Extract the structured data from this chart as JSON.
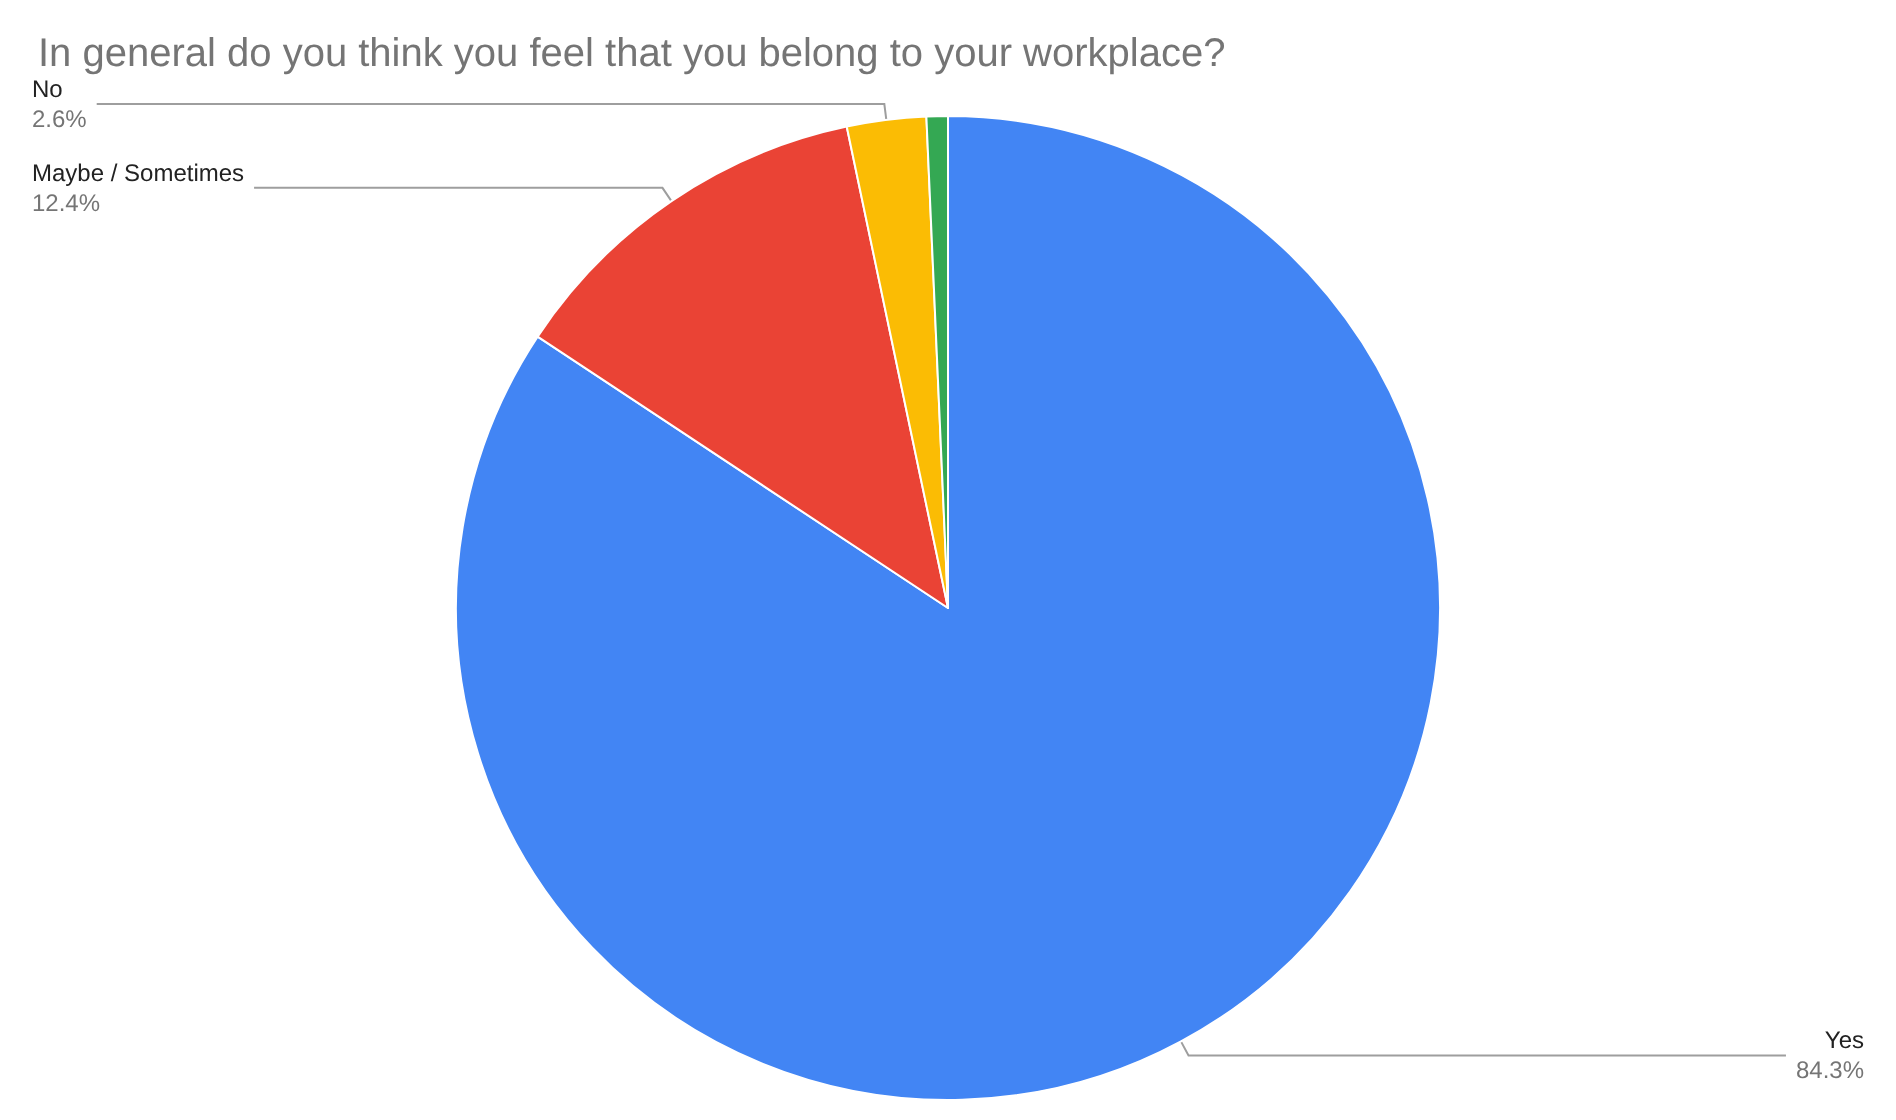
{
  "chart_data": {
    "type": "pie",
    "title": "In general do you think you feel that you belong to your workplace?",
    "categories": [
      "Yes",
      "Maybe / Sometimes",
      "No",
      null
    ],
    "values": [
      84.3,
      12.4,
      2.6,
      0.7
    ],
    "value_labels": [
      "84.3%",
      "12.4%",
      "2.6%",
      null
    ],
    "colors": [
      "#4285f4",
      "#ea4335",
      "#fbbc04",
      "#34a853"
    ],
    "legend": false
  }
}
